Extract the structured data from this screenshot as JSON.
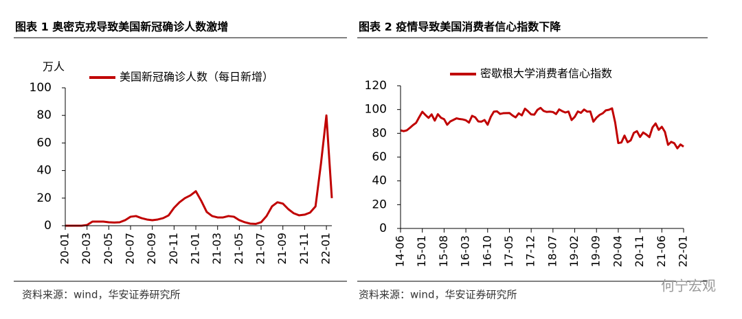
{
  "charts": [
    {
      "type": "line",
      "title": "图表 1 奥密克戎导致美国新冠确诊人数激增",
      "y_label": "万人",
      "source": "资料来源：wind，华安证券研究所",
      "categories": [
        "20-01",
        null,
        null,
        null,
        "20-03",
        null,
        null,
        null,
        "20-05",
        null,
        null,
        null,
        "20-07",
        null,
        null,
        null,
        "20-09",
        null,
        null,
        null,
        "20-11",
        null,
        null,
        null,
        "21-01",
        null,
        null,
        null,
        "21-03",
        null,
        null,
        null,
        "21-05",
        null,
        null,
        null,
        "21-07",
        null,
        null,
        null,
        "21-09",
        null,
        null,
        null,
        "21-11",
        null,
        null,
        null,
        "22-01",
        null
      ],
      "series": [
        {
          "name": "美国新冠确诊人数（每日新增）",
          "color": "#c00000",
          "values": [
            0,
            0,
            0,
            0,
            0.5,
            3,
            3,
            3,
            2.5,
            2.3,
            2.5,
            4,
            6.5,
            7,
            5.5,
            4.5,
            4,
            4.5,
            5.5,
            7.5,
            13,
            17,
            20,
            22,
            25,
            18,
            10,
            7,
            6,
            6,
            7,
            6.5,
            4,
            2.5,
            1.5,
            1.3,
            2.5,
            7,
            14,
            17,
            16,
            12,
            9,
            7.5,
            8,
            9.5,
            14,
            45,
            80,
            20
          ]
        }
      ],
      "ylim": [
        0,
        100
      ],
      "yticks": [
        0,
        20,
        40,
        60,
        80,
        100
      ]
    },
    {
      "type": "line",
      "title": "图表 2 疫情导致美国消费者信心指数下降",
      "source": "资料来源：wind，华安证券研究所",
      "categories": [
        "14-06",
        null,
        null,
        null,
        null,
        null,
        null,
        "15-01",
        null,
        null,
        null,
        null,
        null,
        null,
        "15-08",
        null,
        null,
        null,
        null,
        null,
        null,
        "16-03",
        null,
        null,
        null,
        null,
        null,
        null,
        "16-10",
        null,
        null,
        null,
        null,
        null,
        null,
        "17-05",
        null,
        null,
        null,
        null,
        null,
        null,
        "17-12",
        null,
        null,
        null,
        null,
        null,
        null,
        "18-07",
        null,
        null,
        null,
        null,
        null,
        null,
        "19-02",
        null,
        null,
        null,
        null,
        null,
        null,
        "19-09",
        null,
        null,
        null,
        null,
        null,
        null,
        "20-04",
        null,
        null,
        null,
        null,
        null,
        null,
        "20-11",
        null,
        null,
        null,
        null,
        null,
        null,
        "21-06",
        null,
        null,
        null,
        null,
        null,
        null,
        "22-01"
      ],
      "series": [
        {
          "name": "密歇根大学消费者信心指数",
          "color": "#c00000",
          "values": [
            82.5,
            81.8,
            82.5,
            84.6,
            86.9,
            88.8,
            93.6,
            98.1,
            95.4,
            93.0,
            95.9,
            90.7,
            96.1,
            93.1,
            91.9,
            87.2,
            90.0,
            91.3,
            92.6,
            92.0,
            91.7,
            91.0,
            89.0,
            94.7,
            93.5,
            90.0,
            89.8,
            91.2,
            87.2,
            93.8,
            98.2,
            98.5,
            96.3,
            96.9,
            97.0,
            97.1,
            95.0,
            93.4,
            96.8,
            95.1,
            100.7,
            98.5,
            95.9,
            95.7,
            99.7,
            101.4,
            98.8,
            98.0,
            98.2,
            97.9,
            96.2,
            100.1,
            98.6,
            97.5,
            98.3,
            91.2,
            93.8,
            98.4,
            97.2,
            100.0,
            98.2,
            98.4,
            89.8,
            93.2,
            95.5,
            96.8,
            99.3,
            99.8,
            101.0,
            89.1,
            71.8,
            72.3,
            78.1,
            72.5,
            74.1,
            80.4,
            81.8,
            76.9,
            80.7,
            79.0,
            76.8,
            84.9,
            88.3,
            82.9,
            85.5,
            81.2,
            70.3,
            72.8,
            71.7,
            67.4,
            70.6,
            68.8
          ]
        }
      ],
      "ylim": [
        0,
        120
      ],
      "yticks": [
        0,
        20,
        40,
        60,
        80,
        100,
        120
      ]
    }
  ],
  "watermark": "何宁宏观"
}
